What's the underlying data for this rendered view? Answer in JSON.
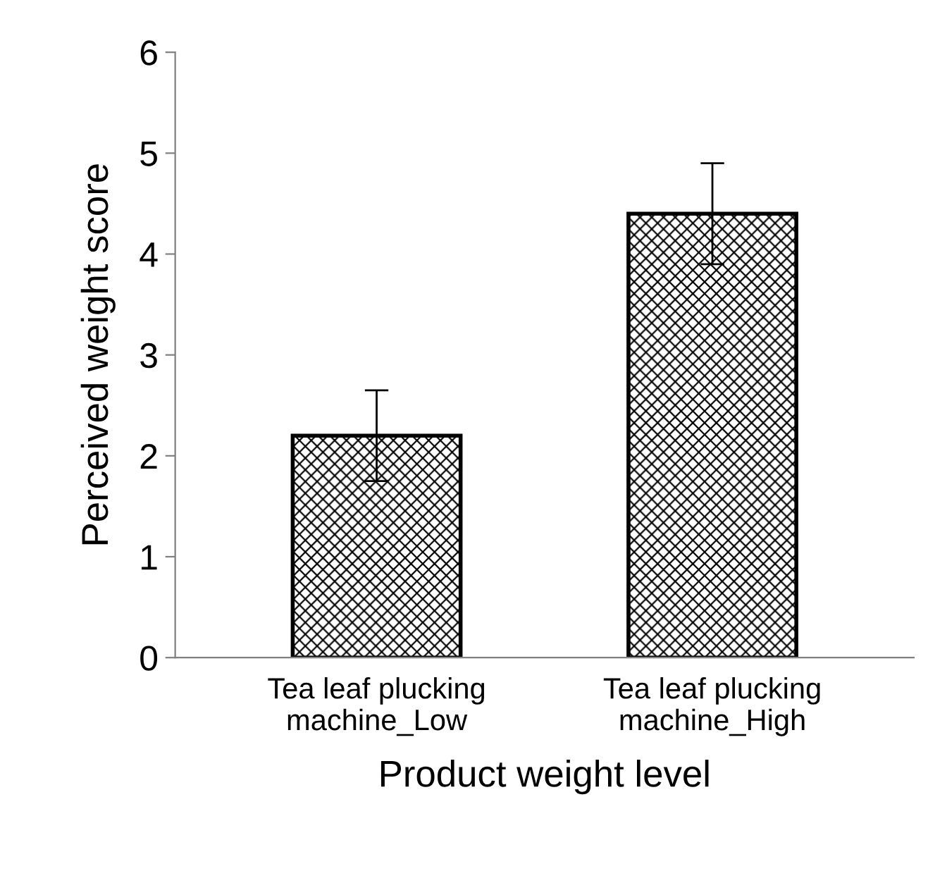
{
  "chart_data": {
    "type": "bar",
    "xlabel": "Product weight level",
    "ylabel": "Perceived weight score",
    "categories": [
      "Tea leaf plucking\nmachine_Low",
      "Tea leaf plucking\nmachine_High"
    ],
    "values": [
      2.2,
      4.4
    ],
    "errors": [
      0.45,
      0.5
    ],
    "color": "#000000",
    "ylim": [
      0,
      6
    ],
    "yticks": [
      0,
      1,
      2,
      3,
      4,
      5,
      6
    ],
    "grid": false,
    "legend": false
  }
}
